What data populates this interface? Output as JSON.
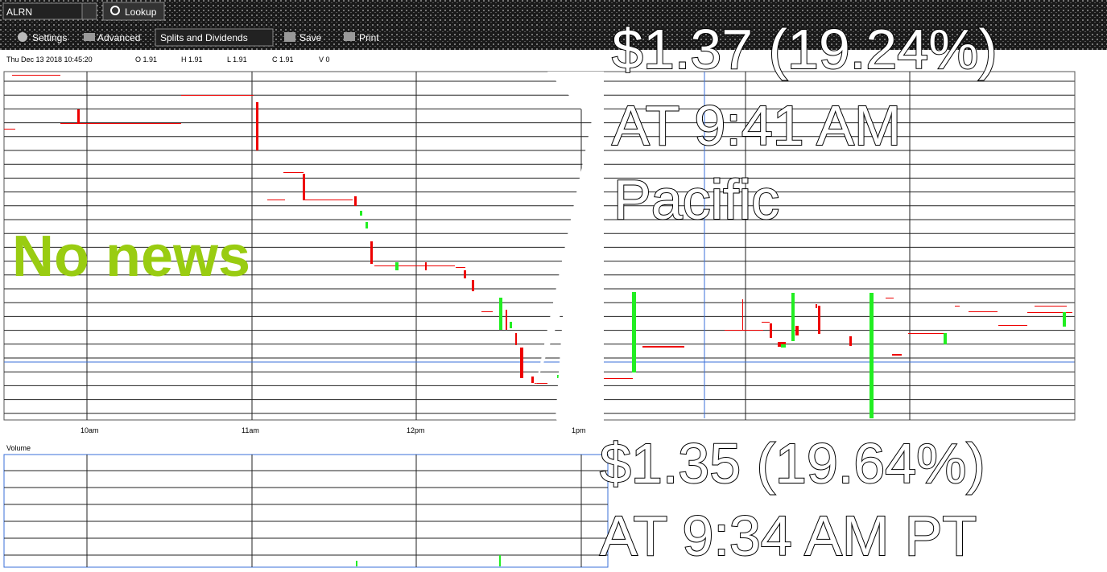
{
  "toolbar": {
    "symbol": "ALRN",
    "lookup": "Lookup",
    "settings": "Settings",
    "advanced": "Advanced",
    "splits": "Splits and Dividends",
    "save": "Save",
    "print": "Print"
  },
  "info_bar": {
    "date": "Thu Dec 13 2018 10:45:20",
    "open": "O 1.91",
    "high": "H 1.91",
    "low": "L 1.91",
    "close": "C 1.91",
    "volume": "V 0"
  },
  "x_axis": [
    "10am",
    "11am",
    "12pm",
    "1pm"
  ],
  "volume_panel": {
    "title": "Volume"
  },
  "annotations": {
    "price_top": "$1.37 (19.24%)",
    "time_top": "AT 9:41 AM",
    "zone_top": "Pacific",
    "news": "No news",
    "price_bottom": "$1.35 (19.64%)",
    "time_bottom": "AT 9:34 AM PT"
  }
}
